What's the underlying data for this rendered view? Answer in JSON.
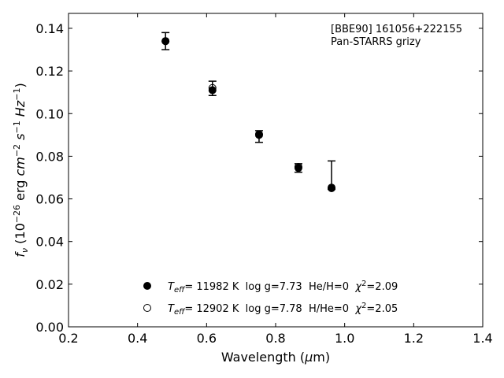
{
  "chart_data": {
    "type": "scatter",
    "title_lines": [
      "[BBE90] 161056+222155",
      "Pan-STARRS grizy"
    ],
    "xlabel": "Wavelength (μm)",
    "ylabel": "fν (10⁻²⁶ erg cm⁻² s⁻¹ Hz⁻¹)",
    "xlim": [
      0.2,
      1.4
    ],
    "ylim": [
      0.0,
      0.147
    ],
    "x_ticks": [
      0.2,
      0.4,
      0.6,
      0.8,
      1.0,
      1.2,
      1.4
    ],
    "x_tick_labels": [
      "0.2",
      "0.4",
      "0.6",
      "0.8",
      "1.0",
      "1.2",
      "1.4"
    ],
    "y_ticks": [
      0.0,
      0.02,
      0.04,
      0.06,
      0.08,
      0.1,
      0.12,
      0.14
    ],
    "y_tick_labels": [
      "0.00",
      "0.02",
      "0.04",
      "0.06",
      "0.08",
      "0.10",
      "0.12",
      "0.14"
    ],
    "grid": false,
    "observed": {
      "x": [
        0.481,
        0.617,
        0.752,
        0.866,
        0.962
      ],
      "y": [
        0.134,
        0.1115,
        0.09,
        0.0745,
        0.065
      ],
      "y_low": [
        0.13,
        0.1085,
        0.0865,
        0.0725,
        0.0645
      ],
      "y_high": [
        0.138,
        0.1152,
        0.092,
        0.0765,
        0.0778
      ]
    },
    "series": [
      {
        "name": "Teff= 11982 K  log g=7.73  He/H=0  χ²=2.09",
        "marker": "filled",
        "x": [
          0.481,
          0.617,
          0.752,
          0.866,
          0.962
        ],
        "y": [
          0.134,
          0.111,
          0.09,
          0.0745,
          0.065
        ]
      },
      {
        "name": "Teff= 12902 K  log g=7.78  H/He=0  χ²=2.05",
        "marker": "open",
        "x": [
          0.481,
          0.617,
          0.752,
          0.866,
          0.962
        ],
        "y": [
          0.134,
          0.112,
          0.0903,
          0.075,
          0.0653
        ]
      }
    ],
    "legend": [
      {
        "marker": "filled",
        "teff": "11982",
        "rest": " K  log g=7.73  He/H=0  ",
        "chi": "2.09"
      },
      {
        "marker": "open",
        "teff": "12902",
        "rest": " K  log g=7.78  H/He=0  ",
        "chi": "2.05"
      }
    ],
    "legend_placement": "lower-center",
    "colors": {
      "marker": "#000000",
      "axes": "#000000",
      "background": "#ffffff"
    }
  }
}
